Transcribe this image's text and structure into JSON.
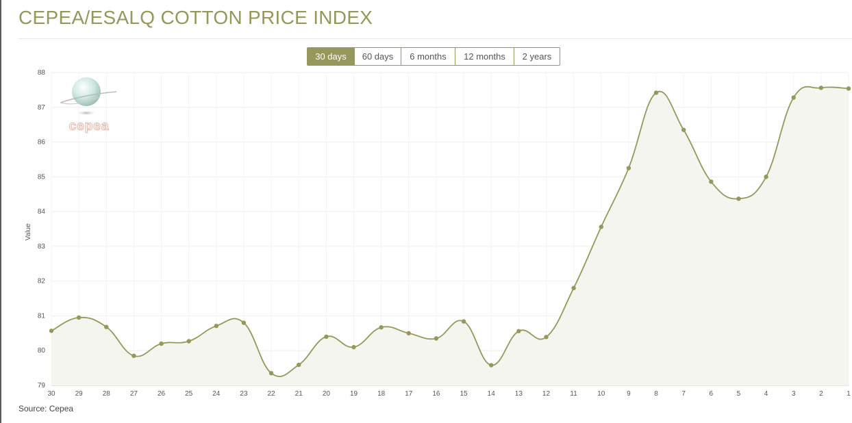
{
  "header": {
    "title": "CEPEA/ESALQ COTTON PRICE INDEX"
  },
  "range_selector": {
    "buttons": [
      {
        "label": "30 days",
        "active": true
      },
      {
        "label": "60 days",
        "active": false
      },
      {
        "label": "6 months",
        "active": false
      },
      {
        "label": "12 months",
        "active": false
      },
      {
        "label": "2 years",
        "active": false
      }
    ]
  },
  "logo": {
    "text": "cepea"
  },
  "footer": {
    "source": "Source: Cepea"
  },
  "colors": {
    "accent": "#96975a",
    "area_fill": "#f5f5f0",
    "grid": "#eeeeee"
  },
  "chart_data": {
    "type": "area",
    "title": "",
    "xlabel": "",
    "ylabel": "Value",
    "ylim": [
      79,
      88
    ],
    "yticks": [
      79,
      80,
      81,
      82,
      83,
      84,
      85,
      86,
      87,
      88
    ],
    "categories": [
      "30",
      "29",
      "28",
      "27",
      "26",
      "25",
      "24",
      "23",
      "22",
      "21",
      "20",
      "19",
      "18",
      "17",
      "16",
      "15",
      "14",
      "13",
      "12",
      "11",
      "10",
      "9",
      "8",
      "7",
      "6",
      "5",
      "4",
      "3",
      "2",
      "1"
    ],
    "series": [
      {
        "values": [
          80.57,
          80.95,
          80.68,
          79.85,
          80.2,
          80.27,
          80.71,
          80.8,
          79.35,
          79.59,
          80.4,
          80.1,
          80.67,
          80.5,
          80.35,
          80.84,
          79.58,
          80.56,
          80.39,
          81.8,
          83.56,
          85.25,
          87.42,
          86.35,
          84.86,
          84.37,
          85.0,
          87.28,
          87.56,
          87.54
        ]
      }
    ],
    "grid": true,
    "legend": "none"
  }
}
